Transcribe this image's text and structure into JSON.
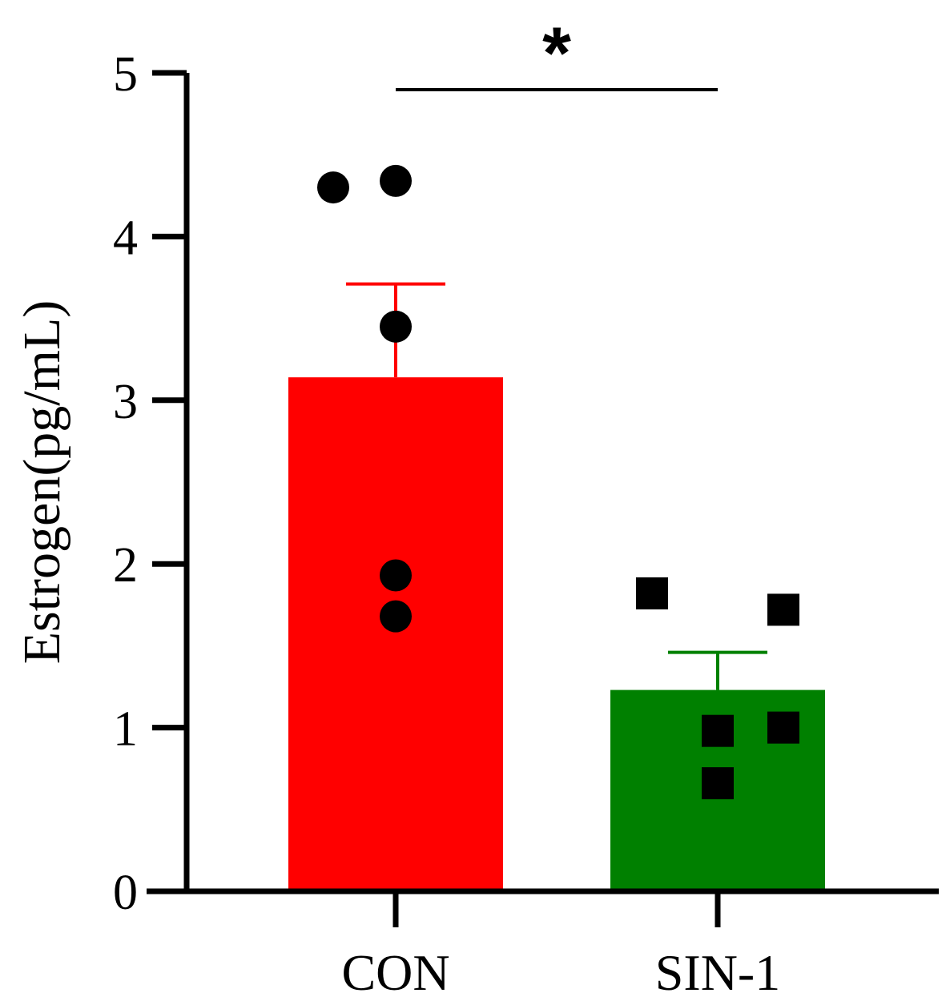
{
  "chart_data": {
    "type": "bar",
    "ylabel": "Estrogen(pg/mL)",
    "ylim": [
      0,
      5
    ],
    "yticks": [
      "0",
      "1",
      "2",
      "3",
      "4",
      "5"
    ],
    "categories": [
      "CON",
      "SIN-1"
    ],
    "bars": [
      {
        "category": "CON",
        "mean": 3.14,
        "error": 0.57,
        "color": "#ff0000",
        "point_shape": "circle",
        "points": [
          4.3,
          4.34,
          3.45,
          1.93,
          1.68
        ]
      },
      {
        "category": "SIN-1",
        "mean": 1.23,
        "error": 0.23,
        "color": "#008000",
        "point_shape": "square",
        "points": [
          1.82,
          1.72,
          0.98,
          1.0,
          0.66
        ]
      }
    ],
    "significance": {
      "between": [
        "CON",
        "SIN-1"
      ],
      "label": "*"
    },
    "grid": false,
    "legend": "none"
  }
}
